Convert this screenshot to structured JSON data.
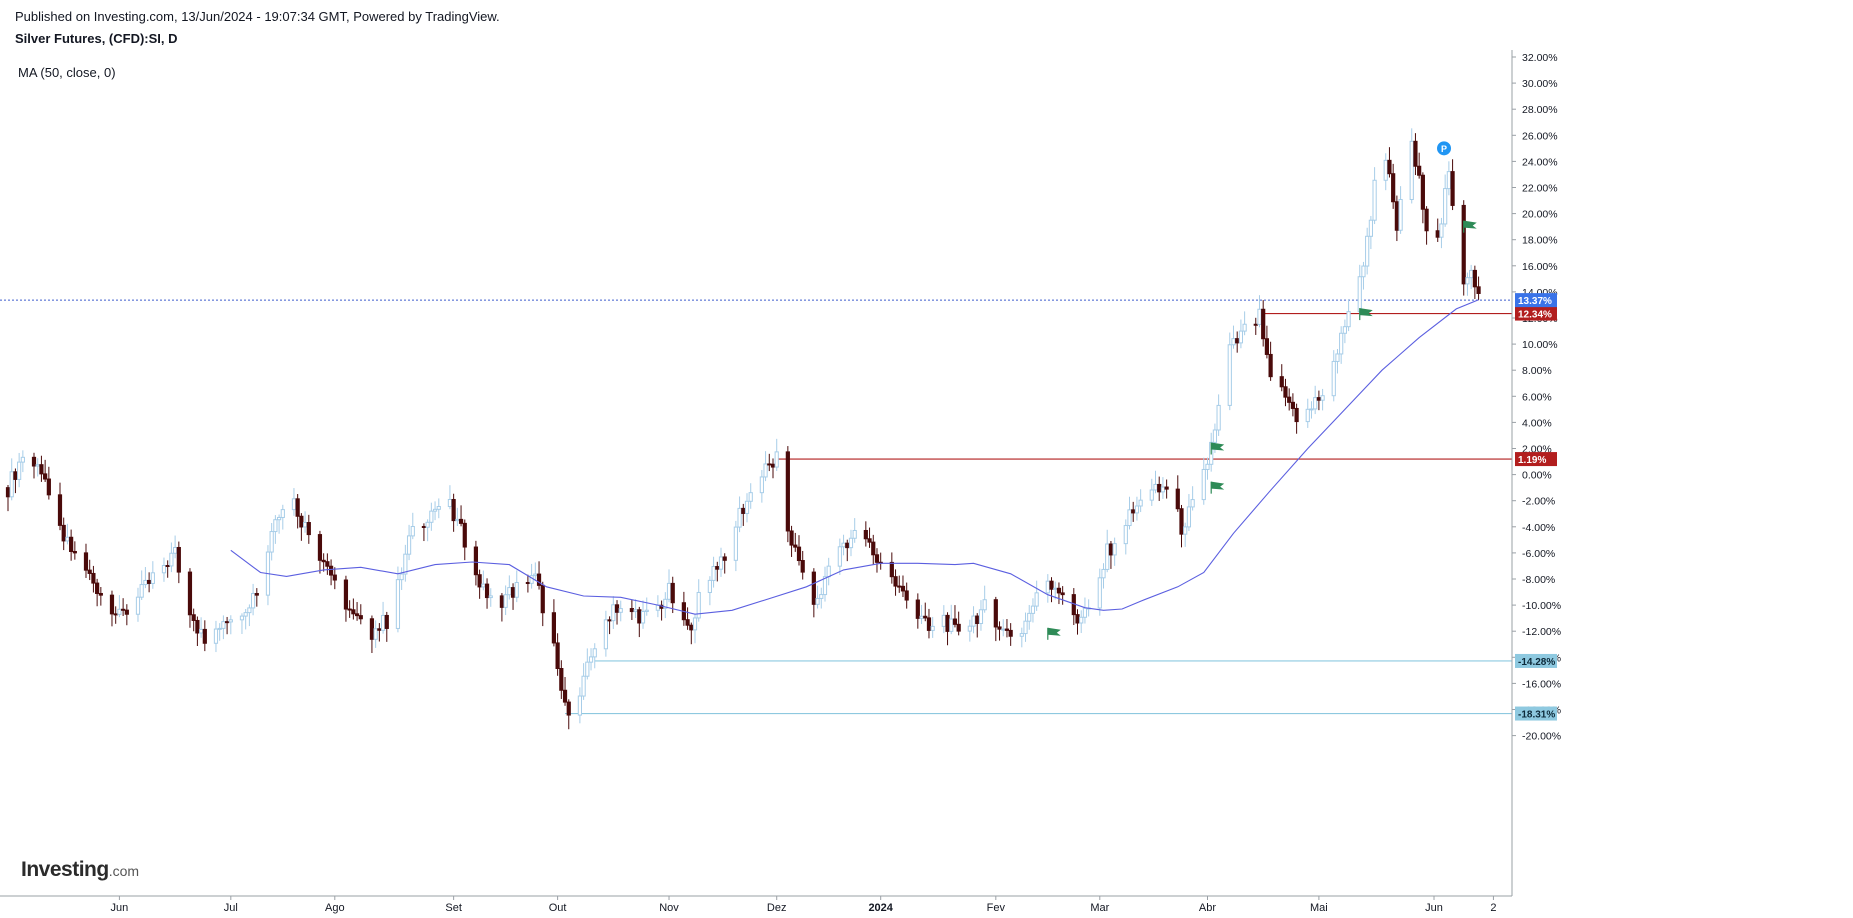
{
  "header": {
    "published": "Published on Investing.com, 13/Jun/2024 - 19:07:34 GMT, Powered by TradingView.",
    "title": "Silver Futures, (CFD):SI, D",
    "indicator": "MA (50, close, 0)"
  },
  "logo": {
    "part1": "Investing",
    "part2": ".com"
  },
  "colors": {
    "up_candle": "#a7cde8",
    "down_candle": "#4a0a0a",
    "ma_line": "#5b5fe0",
    "resistance": "#b21e1e",
    "support": "#8ec9e0",
    "current_price": "#3d5ccc",
    "flag": "#2e8b57",
    "marker": "#2196f3"
  },
  "chart_data": {
    "type": "candlestick",
    "yunit": "%",
    "ylim": [
      -21,
      33
    ],
    "y_ticks": [
      32,
      30,
      28,
      26,
      24,
      22,
      20,
      18,
      16,
      14,
      12,
      10,
      8,
      6,
      4,
      2,
      0,
      -2,
      -4,
      -6,
      -8,
      -10,
      -12,
      -14,
      -16,
      -18,
      -20
    ],
    "y_tick_labels": [
      "32.00%",
      "30.00%",
      "28.00%",
      "26.00%",
      "24.00%",
      "22.00%",
      "20.00%",
      "18.00%",
      "16.00%",
      "14.00%",
      "12.00%",
      "10.00%",
      "8.00%",
      "6.00%",
      "4.00%",
      "2.00%",
      "0.00%",
      "-2.00%",
      "-4.00%",
      "-6.00%",
      "-8.00%",
      "-10.00%",
      "-12.00%",
      "-14.00%",
      "-16.00%",
      "-18.00%",
      "-20.00%"
    ],
    "x_tick_labels": [
      "Jun",
      "Jul",
      "Ago",
      "Set",
      "Out",
      "Nov",
      "Dez",
      "2024",
      "Fev",
      "Mar",
      "Abr",
      "Mai",
      "Jun",
      "2"
    ],
    "x_tick_days": [
      30,
      60,
      88,
      120,
      148,
      178,
      207,
      235,
      266,
      294,
      323,
      353,
      384,
      400
    ],
    "xlim": [
      0,
      405
    ],
    "series": [
      {
        "name": "Silver Futures, (CFD):SI, D",
        "kind": "close",
        "points": [
          [
            0,
            -1
          ],
          [
            4,
            1.5
          ],
          [
            8,
            1
          ],
          [
            12,
            -3
          ],
          [
            15,
            -5
          ],
          [
            20,
            -7
          ],
          [
            25,
            -9
          ],
          [
            30,
            -11
          ],
          [
            35,
            -9.5
          ],
          [
            40,
            -7.5
          ],
          [
            45,
            -6
          ],
          [
            48,
            -9.5
          ],
          [
            53,
            -13
          ],
          [
            58,
            -11
          ],
          [
            64,
            -10
          ],
          [
            68,
            -8.5
          ],
          [
            72,
            -3
          ],
          [
            76,
            -1.5
          ],
          [
            80,
            -4
          ],
          [
            85,
            -6.5
          ],
          [
            88,
            -8
          ],
          [
            93,
            -11
          ],
          [
            98,
            -12
          ],
          [
            103,
            -11
          ],
          [
            108,
            -5
          ],
          [
            113,
            -3
          ],
          [
            118,
            -2
          ],
          [
            123,
            -5
          ],
          [
            128,
            -9
          ],
          [
            133,
            -9.5
          ],
          [
            138,
            -8.5
          ],
          [
            142,
            -8
          ],
          [
            146,
            -12
          ],
          [
            150,
            -18
          ],
          [
            154,
            -17
          ],
          [
            158,
            -13
          ],
          [
            163,
            -10
          ],
          [
            168,
            -10.5
          ],
          [
            173,
            -11
          ],
          [
            178,
            -9
          ],
          [
            183,
            -12
          ],
          [
            188,
            -8
          ],
          [
            193,
            -6
          ],
          [
            197,
            -3
          ],
          [
            203,
            0
          ],
          [
            207,
            1.2
          ],
          [
            210,
            -4
          ],
          [
            213,
            -7
          ],
          [
            218,
            -10
          ],
          [
            222,
            -6
          ],
          [
            226,
            -5
          ],
          [
            230,
            -4.5
          ],
          [
            234,
            -6.5
          ],
          [
            238,
            -8
          ],
          [
            243,
            -10
          ],
          [
            248,
            -12
          ],
          [
            252,
            -11
          ],
          [
            256,
            -12.5
          ],
          [
            260,
            -11
          ],
          [
            264,
            -10
          ],
          [
            268,
            -12
          ],
          [
            272,
            -12.5
          ],
          [
            276,
            -10
          ],
          [
            280,
            -8
          ],
          [
            284,
            -9
          ],
          [
            288,
            -11
          ],
          [
            292,
            -10
          ],
          [
            296,
            -6
          ],
          [
            300,
            -4
          ],
          [
            304,
            -2.5
          ],
          [
            308,
            -1.5
          ],
          [
            312,
            -1
          ],
          [
            316,
            -4
          ],
          [
            320,
            -2
          ],
          [
            323,
            1
          ],
          [
            326,
            5
          ],
          [
            329,
            9.5
          ],
          [
            333,
            11
          ],
          [
            337,
            12
          ],
          [
            340,
            7
          ],
          [
            344,
            6
          ],
          [
            348,
            4
          ],
          [
            352,
            5.5
          ],
          [
            356,
            7
          ],
          [
            359,
            11
          ],
          [
            363,
            13
          ],
          [
            367,
            20
          ],
          [
            370,
            26
          ],
          [
            374,
            19
          ],
          [
            378,
            25
          ],
          [
            381,
            21
          ],
          [
            384,
            16
          ],
          [
            388,
            23
          ],
          [
            391,
            14.5
          ],
          [
            394,
            16
          ],
          [
            397,
            12.5
          ]
        ]
      },
      {
        "name": "MA (50, close, 0)",
        "kind": "line",
        "points": [
          [
            60,
            -5.8
          ],
          [
            68,
            -7.5
          ],
          [
            75,
            -7.8
          ],
          [
            85,
            -7.3
          ],
          [
            95,
            -7.1
          ],
          [
            105,
            -7.6
          ],
          [
            115,
            -6.9
          ],
          [
            125,
            -6.7
          ],
          [
            135,
            -6.9
          ],
          [
            145,
            -8.6
          ],
          [
            155,
            -9.3
          ],
          [
            165,
            -9.4
          ],
          [
            175,
            -10
          ],
          [
            185,
            -10.7
          ],
          [
            195,
            -10.4
          ],
          [
            205,
            -9.5
          ],
          [
            215,
            -8.6
          ],
          [
            225,
            -7.3
          ],
          [
            235,
            -6.8
          ],
          [
            245,
            -6.8
          ],
          [
            255,
            -6.9
          ],
          [
            260,
            -6.8
          ],
          [
            270,
            -7.6
          ],
          [
            280,
            -9.2
          ],
          [
            290,
            -10.2
          ],
          [
            295,
            -10.4
          ],
          [
            300,
            -10.3
          ],
          [
            305,
            -9.7
          ],
          [
            315,
            -8.6
          ],
          [
            322,
            -7.5
          ],
          [
            330,
            -4.5
          ],
          [
            340,
            -1.2
          ],
          [
            350,
            2
          ],
          [
            360,
            5
          ],
          [
            370,
            8
          ],
          [
            380,
            10.5
          ],
          [
            390,
            12.7
          ],
          [
            396,
            13.4
          ]
        ]
      }
    ],
    "horizontal_lines": [
      {
        "value": 1.19,
        "label": "1.19%",
        "kind": "resistance",
        "from_day": 207
      },
      {
        "value": 12.34,
        "label": "12.34%",
        "kind": "resistance",
        "from_day": 337
      },
      {
        "value": -14.28,
        "label": "-14.28%",
        "kind": "support",
        "from_day": 158
      },
      {
        "value": -18.31,
        "label": "-18.31%",
        "kind": "support",
        "from_day": 150
      }
    ],
    "current_value": {
      "value": 13.37,
      "label": "13.37%"
    },
    "flags": [
      [
        280,
        -12.2
      ],
      [
        324,
        2
      ],
      [
        324,
        -1
      ],
      [
        364,
        12.3
      ],
      [
        392,
        19
      ]
    ],
    "marker": {
      "day": 384,
      "value": 25,
      "label": "P"
    },
    "grid": false,
    "legend": "top-left"
  }
}
